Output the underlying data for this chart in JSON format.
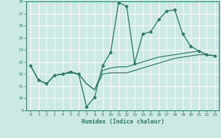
{
  "title": "",
  "xlabel": "Humidex (Indice chaleur)",
  "ylabel": "",
  "bg_color": "#cce9e4",
  "grid_color": "#ffffff",
  "line_color": "#2d7a6a",
  "xlim": [
    -0.5,
    23.5
  ],
  "ylim": [
    9,
    18
  ],
  "yticks": [
    9,
    10,
    11,
    12,
    13,
    14,
    15,
    16,
    17,
    18
  ],
  "xticks": [
    0,
    1,
    2,
    3,
    4,
    5,
    6,
    7,
    8,
    9,
    10,
    11,
    12,
    13,
    14,
    15,
    16,
    17,
    18,
    19,
    20,
    21,
    22,
    23
  ],
  "lines": [
    {
      "x": [
        0,
        1,
        2,
        3,
        4,
        5,
        6,
        7,
        8,
        9,
        10,
        11,
        12,
        13,
        14,
        15,
        16,
        17,
        18,
        19,
        20,
        21,
        22,
        23
      ],
      "y": [
        12.7,
        11.5,
        11.2,
        11.9,
        12.0,
        12.2,
        12.0,
        9.3,
        10.1,
        12.7,
        13.8,
        17.9,
        17.6,
        12.9,
        15.3,
        15.5,
        16.5,
        17.2,
        17.3,
        15.3,
        14.3,
        13.9,
        13.6,
        13.5
      ],
      "marker": "D",
      "markersize": 2.0,
      "linewidth": 1.0
    },
    {
      "x": [
        0,
        1,
        2,
        3,
        4,
        5,
        6,
        7,
        8,
        9,
        10,
        11,
        12,
        13,
        14,
        15,
        16,
        17,
        18,
        19,
        20,
        21,
        22,
        23
      ],
      "y": [
        12.7,
        11.5,
        11.2,
        11.9,
        12.0,
        12.1,
        12.0,
        11.2,
        10.7,
        12.3,
        12.5,
        12.6,
        12.6,
        12.8,
        13.0,
        13.2,
        13.4,
        13.5,
        13.6,
        13.7,
        13.8,
        13.9,
        13.6,
        13.5
      ],
      "marker": null,
      "linewidth": 0.9
    },
    {
      "x": [
        0,
        1,
        2,
        3,
        4,
        5,
        6,
        7,
        8,
        9,
        10,
        11,
        12,
        13,
        14,
        15,
        16,
        17,
        18,
        19,
        20,
        21,
        22,
        23
      ],
      "y": [
        12.7,
        11.5,
        11.2,
        11.9,
        12.0,
        12.1,
        12.0,
        11.2,
        10.7,
        12.0,
        12.1,
        12.1,
        12.1,
        12.3,
        12.5,
        12.7,
        12.9,
        13.1,
        13.3,
        13.4,
        13.5,
        13.6,
        13.6,
        13.5
      ],
      "marker": null,
      "linewidth": 0.9
    }
  ]
}
